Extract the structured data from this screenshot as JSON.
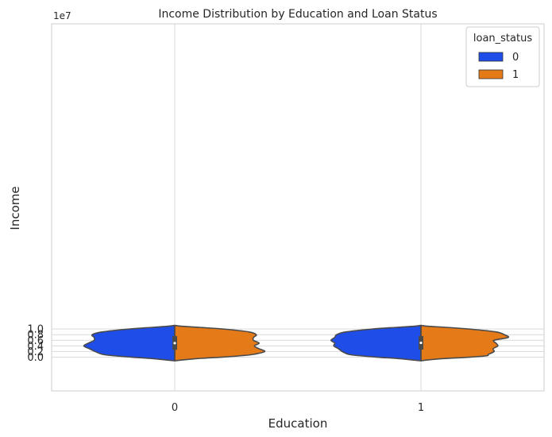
{
  "chart_data": {
    "type": "violin",
    "title": "Income Distribution by Education and Loan Status",
    "xlabel": "Education",
    "ylabel": "Income",
    "y_offset_label": "1e7",
    "categories": [
      "0",
      "1"
    ],
    "ylim": [
      -1.2,
      11.85
    ],
    "yticks": [
      0.0,
      0.2,
      0.4,
      0.6,
      0.8,
      1.0
    ],
    "ytick_labels": [
      "0.0",
      "0.2",
      "0.4",
      "0.6",
      "0.8",
      "1.0"
    ],
    "y_scale_note": "values in units of 1e7",
    "split": true,
    "grid": true,
    "legend": {
      "title": "loan_status",
      "position": "top-right",
      "entries": [
        {
          "label": "0",
          "color": "#1f4de8"
        },
        {
          "label": "1",
          "color": "#e57a18"
        }
      ]
    },
    "colors": {
      "0": "#1f4de8",
      "1": "#e57a18",
      "edge": "#4a4a4a",
      "grid": "#d9d9d9"
    },
    "violins": [
      {
        "category": "0",
        "box": {
          "q1": 0.26,
          "q3": 0.75,
          "median": 0.5
        },
        "halves": [
          {
            "hue": "0",
            "profile": [
              [
                -0.13,
                0.0
              ],
              [
                -0.1,
                0.09
              ],
              [
                -0.05,
                0.24
              ],
              [
                0.0,
                0.46
              ],
              [
                0.05,
                0.65
              ],
              [
                0.1,
                0.77
              ],
              [
                0.2,
                0.85
              ],
              [
                0.3,
                0.91
              ],
              [
                0.4,
                0.97
              ],
              [
                0.5,
                0.92
              ],
              [
                0.6,
                0.86
              ],
              [
                0.7,
                0.86
              ],
              [
                0.8,
                0.88
              ],
              [
                0.9,
                0.77
              ],
              [
                1.0,
                0.49
              ],
              [
                1.06,
                0.24
              ],
              [
                1.1,
                0.07
              ],
              [
                1.13,
                0.0
              ]
            ]
          },
          {
            "hue": "1",
            "profile": [
              [
                -0.13,
                0.0
              ],
              [
                -0.1,
                0.08
              ],
              [
                -0.05,
                0.24
              ],
              [
                0.0,
                0.5
              ],
              [
                0.05,
                0.7
              ],
              [
                0.1,
                0.84
              ],
              [
                0.2,
                0.96
              ],
              [
                0.3,
                0.9
              ],
              [
                0.4,
                0.85
              ],
              [
                0.5,
                0.9
              ],
              [
                0.6,
                0.84
              ],
              [
                0.7,
                0.84
              ],
              [
                0.8,
                0.87
              ],
              [
                0.9,
                0.79
              ],
              [
                1.0,
                0.52
              ],
              [
                1.06,
                0.26
              ],
              [
                1.1,
                0.07
              ],
              [
                1.13,
                0.0
              ]
            ]
          }
        ]
      },
      {
        "category": "1",
        "box": {
          "q1": 0.27,
          "q3": 0.75,
          "median": 0.51
        },
        "halves": [
          {
            "hue": "0",
            "profile": [
              [
                -0.13,
                0.0
              ],
              [
                -0.1,
                0.09
              ],
              [
                -0.05,
                0.24
              ],
              [
                0.0,
                0.47
              ],
              [
                0.05,
                0.65
              ],
              [
                0.1,
                0.77
              ],
              [
                0.2,
                0.84
              ],
              [
                0.3,
                0.88
              ],
              [
                0.4,
                0.93
              ],
              [
                0.5,
                0.92
              ],
              [
                0.6,
                0.96
              ],
              [
                0.7,
                0.92
              ],
              [
                0.8,
                0.9
              ],
              [
                0.9,
                0.8
              ],
              [
                1.0,
                0.52
              ],
              [
                1.06,
                0.26
              ],
              [
                1.1,
                0.07
              ],
              [
                1.13,
                0.0
              ]
            ]
          },
          {
            "hue": "1",
            "profile": [
              [
                -0.13,
                0.0
              ],
              [
                -0.1,
                0.07
              ],
              [
                -0.05,
                0.24
              ],
              [
                0.0,
                0.52
              ],
              [
                0.05,
                0.7
              ],
              [
                0.1,
                0.72
              ],
              [
                0.2,
                0.78
              ],
              [
                0.3,
                0.77
              ],
              [
                0.4,
                0.82
              ],
              [
                0.5,
                0.8
              ],
              [
                0.6,
                0.78
              ],
              [
                0.7,
                0.93
              ],
              [
                0.8,
                0.89
              ],
              [
                0.9,
                0.8
              ],
              [
                1.0,
                0.52
              ],
              [
                1.06,
                0.27
              ],
              [
                1.1,
                0.07
              ],
              [
                1.13,
                0.0
              ]
            ]
          }
        ]
      }
    ]
  }
}
